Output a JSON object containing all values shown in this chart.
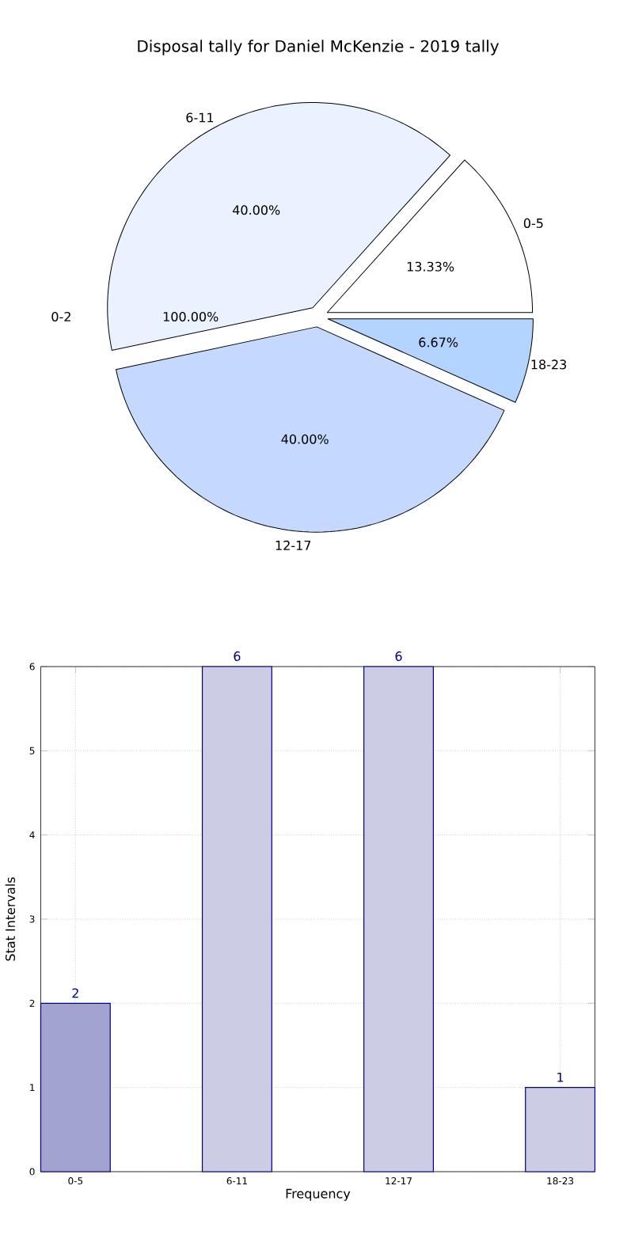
{
  "chart_data": [
    {
      "type": "pie",
      "title": "Disposal tally for Daniel McKenzie - 2019 tally",
      "categories": [
        "0-5",
        "6-11",
        "12-17",
        "18-23"
      ],
      "values": [
        13.33,
        40,
        40,
        6.67
      ],
      "value_labels": [
        "13.33%",
        "40.00%",
        "40.00%",
        "6.67%"
      ],
      "colors": [
        "#ffffff",
        "#eaf1ff",
        "#c5d9ff",
        "#b3d4ff"
      ],
      "annotations": [
        "0-2",
        "100.00%"
      ]
    },
    {
      "type": "bar",
      "categories": [
        "0-5",
        "6-11",
        "12-17",
        "18-23"
      ],
      "values": [
        2,
        6,
        6,
        1
      ],
      "colors": [
        "#a3a3cf",
        "#cccce5",
        "#cccce5",
        "#cccce5"
      ],
      "xlabel": "Frequency",
      "ylabel": "Stat Intervals",
      "ylim": [
        0,
        6
      ],
      "yticks": [
        0,
        1,
        2,
        3,
        4,
        5,
        6
      ],
      "grid": true,
      "data_labels": true
    }
  ]
}
